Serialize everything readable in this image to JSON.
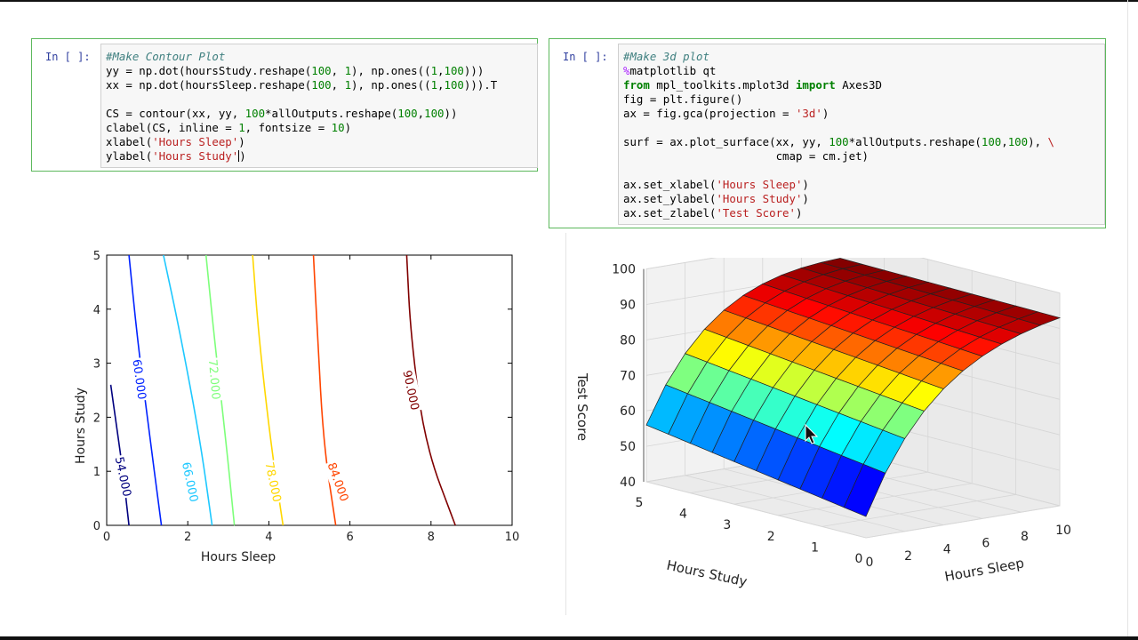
{
  "cell1": {
    "prompt": "In [ ]:",
    "lines": [
      [
        {
          "t": "#Make Contour Plot",
          "c": "cm"
        }
      ],
      [
        {
          "t": "yy = np.dot(hoursStudy.reshape(",
          "c": "op"
        },
        {
          "t": "100",
          "c": "nu"
        },
        {
          "t": ", ",
          "c": "op"
        },
        {
          "t": "1",
          "c": "nu"
        },
        {
          "t": "), np.ones((",
          "c": "op"
        },
        {
          "t": "1",
          "c": "nu"
        },
        {
          "t": ",",
          "c": "op"
        },
        {
          "t": "100",
          "c": "nu"
        },
        {
          "t": ")))",
          "c": "op"
        }
      ],
      [
        {
          "t": "xx = np.dot(hoursSleep.reshape(",
          "c": "op"
        },
        {
          "t": "100",
          "c": "nu"
        },
        {
          "t": ", ",
          "c": "op"
        },
        {
          "t": "1",
          "c": "nu"
        },
        {
          "t": "), np.ones((",
          "c": "op"
        },
        {
          "t": "1",
          "c": "nu"
        },
        {
          "t": ",",
          "c": "op"
        },
        {
          "t": "100",
          "c": "nu"
        },
        {
          "t": "))).T",
          "c": "op"
        }
      ],
      [],
      [
        {
          "t": "CS = contour(xx, yy, ",
          "c": "op"
        },
        {
          "t": "100",
          "c": "nu"
        },
        {
          "t": "*allOutputs.reshape(",
          "c": "op"
        },
        {
          "t": "100",
          "c": "nu"
        },
        {
          "t": ",",
          "c": "op"
        },
        {
          "t": "100",
          "c": "nu"
        },
        {
          "t": "))",
          "c": "op"
        }
      ],
      [
        {
          "t": "clabel(CS, inline = ",
          "c": "op"
        },
        {
          "t": "1",
          "c": "nu"
        },
        {
          "t": ", fontsize = ",
          "c": "op"
        },
        {
          "t": "10",
          "c": "nu"
        },
        {
          "t": ")",
          "c": "op"
        }
      ],
      [
        {
          "t": "xlabel(",
          "c": "op"
        },
        {
          "t": "'Hours Sleep'",
          "c": "st"
        },
        {
          "t": ")",
          "c": "op"
        }
      ],
      [
        {
          "t": "ylabel(",
          "c": "op"
        },
        {
          "t": "'Hours Study'",
          "c": "st"
        },
        {
          "t": ")",
          "c": "op"
        }
      ]
    ]
  },
  "cell2": {
    "prompt": "In [ ]:",
    "lines": [
      [
        {
          "t": "#Make 3d plot",
          "c": "cm"
        }
      ],
      [
        {
          "t": "%",
          "c": "mg"
        },
        {
          "t": "matplotlib qt",
          "c": "op"
        }
      ],
      [
        {
          "t": "from",
          "c": "kw"
        },
        {
          "t": " mpl_toolkits.mplot3d ",
          "c": "op"
        },
        {
          "t": "import",
          "c": "kw"
        },
        {
          "t": " Axes3D",
          "c": "op"
        }
      ],
      [
        {
          "t": "fig = plt.figure()",
          "c": "op"
        }
      ],
      [
        {
          "t": "ax = fig.gca(projection = ",
          "c": "op"
        },
        {
          "t": "'3d'",
          "c": "st"
        },
        {
          "t": ")",
          "c": "op"
        }
      ],
      [],
      [
        {
          "t": "surf = ax.plot_surface(xx, yy, ",
          "c": "op"
        },
        {
          "t": "100",
          "c": "nu"
        },
        {
          "t": "*allOutputs.reshape(",
          "c": "op"
        },
        {
          "t": "100",
          "c": "nu"
        },
        {
          "t": ",",
          "c": "op"
        },
        {
          "t": "100",
          "c": "nu"
        },
        {
          "t": "), ",
          "c": "op"
        },
        {
          "t": "\\",
          "c": "st"
        }
      ],
      [
        {
          "t": "                       cmap = cm.jet)",
          "c": "op"
        }
      ],
      [],
      [
        {
          "t": "ax.set_xlabel(",
          "c": "op"
        },
        {
          "t": "'Hours Sleep'",
          "c": "st"
        },
        {
          "t": ")",
          "c": "op"
        }
      ],
      [
        {
          "t": "ax.set_ylabel(",
          "c": "op"
        },
        {
          "t": "'Hours Study'",
          "c": "st"
        },
        {
          "t": ")",
          "c": "op"
        }
      ],
      [
        {
          "t": "ax.set_zlabel(",
          "c": "op"
        },
        {
          "t": "'Test Score'",
          "c": "st"
        },
        {
          "t": ")",
          "c": "op"
        }
      ]
    ]
  },
  "chart_data": [
    {
      "type": "line",
      "title": "",
      "xlabel": "Hours Sleep",
      "ylabel": "Hours Study",
      "xlim": [
        0,
        10
      ],
      "ylim": [
        0,
        5
      ],
      "xticks": [
        "0",
        "2",
        "4",
        "6",
        "8",
        "10"
      ],
      "yticks": [
        "0",
        "1",
        "2",
        "3",
        "4",
        "5"
      ],
      "series": [
        {
          "name": "54.000",
          "color": "#00007f",
          "x": [
            0.1,
            0.25,
            0.4,
            0.55
          ],
          "y": [
            2.6,
            1.8,
            1.0,
            0.0
          ]
        },
        {
          "name": "60.000",
          "color": "#0022ff",
          "x": [
            0.55,
            0.75,
            1.0,
            1.35
          ],
          "y": [
            5.0,
            3.5,
            2.0,
            0.0
          ]
        },
        {
          "name": "66.000",
          "color": "#1ec8ff",
          "x": [
            1.4,
            1.8,
            2.3,
            2.6
          ],
          "y": [
            5.0,
            3.6,
            1.6,
            0.0
          ]
        },
        {
          "name": "72.000",
          "color": "#7dff7a",
          "x": [
            2.45,
            2.65,
            2.95,
            3.15
          ],
          "y": [
            5.0,
            3.5,
            1.5,
            0.0
          ]
        },
        {
          "name": "78.000",
          "color": "#ffd700",
          "x": [
            3.6,
            3.75,
            4.05,
            4.35
          ],
          "y": [
            5.0,
            3.5,
            1.5,
            0.0
          ]
        },
        {
          "name": "84.000",
          "color": "#ff4400",
          "x": [
            5.1,
            5.2,
            5.35,
            5.65
          ],
          "y": [
            5.0,
            3.5,
            1.5,
            0.0
          ]
        },
        {
          "name": "90.000",
          "color": "#800000",
          "x": [
            7.4,
            7.5,
            7.85,
            8.6
          ],
          "y": [
            5.0,
            3.5,
            1.5,
            0.0
          ]
        }
      ],
      "labels": [
        {
          "text": "54.000",
          "color": "#00007f",
          "x": 0.4,
          "y": 0.9,
          "angle": 78
        },
        {
          "text": "60.000",
          "color": "#0022ff",
          "x": 0.8,
          "y": 2.7,
          "angle": 82
        },
        {
          "text": "66.000",
          "color": "#1ec8ff",
          "x": 2.05,
          "y": 0.8,
          "angle": 78
        },
        {
          "text": "72.000",
          "color": "#7dff7a",
          "x": 2.65,
          "y": 2.7,
          "angle": 85
        },
        {
          "text": "78.000",
          "color": "#ffd700",
          "x": 4.1,
          "y": 0.8,
          "angle": 78
        },
        {
          "text": "84.000",
          "color": "#ff4400",
          "x": 5.7,
          "y": 0.8,
          "angle": 70
        },
        {
          "text": "90.000",
          "color": "#800000",
          "x": 7.5,
          "y": 2.5,
          "angle": 78
        }
      ]
    },
    {
      "type": "surface3d",
      "title": "",
      "xlabel": "Hours Sleep",
      "ylabel": "Hours Study",
      "zlabel": "Test Score",
      "xlim": [
        0,
        10
      ],
      "ylim": [
        0,
        5
      ],
      "zlim": [
        40,
        100
      ],
      "xticks": [
        "0",
        "2",
        "4",
        "6",
        "8",
        "10"
      ],
      "yticks": [
        "5",
        "4",
        "3",
        "2",
        "1",
        "0"
      ],
      "zticks": [
        "40",
        "50",
        "60",
        "70",
        "80",
        "90",
        "100"
      ],
      "colormap": "jet",
      "z_at_corners": {
        "sleep0_study5": 56,
        "sleep0_study0": 46,
        "sleep10_study0": 93,
        "sleep10_study5": 94
      }
    }
  ]
}
